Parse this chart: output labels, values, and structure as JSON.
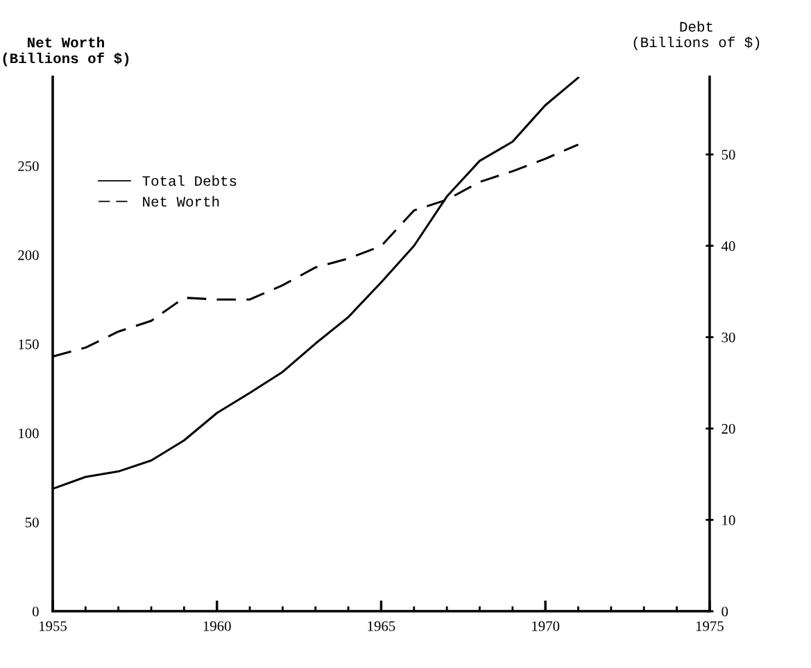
{
  "chart_data": {
    "type": "line",
    "ylabel": "Net Worth\n(Billions of $)",
    "y2label": "Debt\n(Billions of $)",
    "x": [
      1955,
      1956,
      1957,
      1958,
      1959,
      1960,
      1961,
      1962,
      1963,
      1964,
      1965,
      1966,
      1967,
      1968,
      1969,
      1970,
      1971
    ],
    "series": [
      {
        "name": "Total Debts",
        "color": "#000000",
        "line_style": "solid",
        "axis": "y2",
        "values": [
          13.4,
          14.7,
          15.3,
          16.5,
          18.7,
          21.7,
          23.9,
          26.2,
          29.3,
          32.2,
          36.0,
          40.0,
          45.4,
          49.3,
          51.4,
          55.4,
          58.4
        ]
      },
      {
        "name": "Net Worth",
        "color": "#000000",
        "line_style": "dashed",
        "values": [
          143,
          148,
          157,
          163,
          176,
          175,
          175,
          183,
          193,
          198,
          205,
          225,
          231,
          241,
          247,
          254,
          262
        ]
      }
    ],
    "xlim": [
      1955,
      1975
    ],
    "xticks": [
      1955,
      1960,
      1965,
      1970,
      1975
    ],
    "ylim": [
      0,
      300
    ],
    "yticks": [
      0,
      50,
      100,
      150,
      200,
      250
    ],
    "y2lim": [
      0,
      58.5
    ],
    "y2ticks": [
      0,
      10,
      20,
      30,
      40,
      50
    ],
    "legend": "upper left",
    "grid": false
  }
}
